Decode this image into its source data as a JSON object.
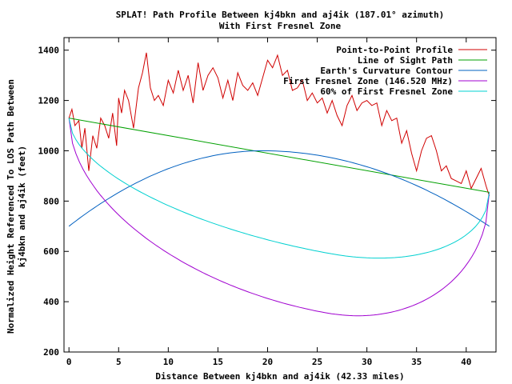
{
  "chart_data": {
    "type": "line",
    "title": "SPLAT! Path Profile Between kj4bkn and aj4ik (187.01° azimuth)",
    "subtitle": "With First Fresnel Zone",
    "xlabel": "Distance Between kj4bkn and aj4ik (42.33 miles)",
    "ylabel": "Normalized Height Referenced To LOS Path Between kj4bkn and aj4ik (feet)",
    "xlim": [
      -0.5,
      43
    ],
    "ylim": [
      200,
      1450
    ],
    "xticks": [
      0,
      5,
      10,
      15,
      20,
      25,
      30,
      35,
      40
    ],
    "yticks": [
      200,
      400,
      600,
      800,
      1000,
      1200,
      1400
    ],
    "grid": false,
    "legend_position": "top-right",
    "series": [
      {
        "name": "Point-to-Point Profile",
        "color": "#d00000",
        "x": [
          0,
          0.3,
          0.6,
          1.0,
          1.3,
          1.6,
          2.0,
          2.4,
          2.8,
          3.2,
          3.6,
          4.0,
          4.4,
          4.8,
          5.0,
          5.3,
          5.6,
          6.0,
          6.5,
          7.0,
          7.4,
          7.8,
          8.2,
          8.6,
          9.0,
          9.5,
          10.0,
          10.5,
          11.0,
          11.5,
          12.0,
          12.5,
          13.0,
          13.5,
          14.0,
          14.5,
          15.0,
          15.5,
          16.0,
          16.5,
          17.0,
          17.5,
          18.0,
          18.5,
          19.0,
          19.5,
          20.0,
          20.5,
          21.0,
          21.5,
          22.0,
          22.5,
          23.0,
          23.5,
          24.0,
          24.5,
          25.0,
          25.5,
          26.0,
          26.5,
          27.0,
          27.5,
          28.0,
          28.5,
          29.0,
          29.5,
          30.0,
          30.5,
          31.0,
          31.5,
          32.0,
          32.5,
          33.0,
          33.5,
          34.0,
          34.5,
          35.0,
          35.5,
          36.0,
          36.5,
          37.0,
          37.5,
          38.0,
          38.5,
          39.0,
          39.5,
          40.0,
          40.5,
          41.0,
          41.5,
          42.0,
          42.33
        ],
        "values": [
          1130,
          1165,
          1100,
          1120,
          1010,
          1090,
          920,
          1060,
          1010,
          1130,
          1100,
          1050,
          1150,
          1020,
          1210,
          1150,
          1240,
          1200,
          1090,
          1250,
          1310,
          1390,
          1250,
          1200,
          1220,
          1180,
          1280,
          1230,
          1320,
          1240,
          1300,
          1190,
          1350,
          1240,
          1300,
          1330,
          1290,
          1210,
          1280,
          1200,
          1310,
          1260,
          1240,
          1270,
          1220,
          1290,
          1360,
          1330,
          1380,
          1300,
          1320,
          1240,
          1250,
          1280,
          1200,
          1230,
          1190,
          1210,
          1150,
          1200,
          1140,
          1100,
          1180,
          1220,
          1160,
          1190,
          1200,
          1180,
          1190,
          1100,
          1160,
          1120,
          1130,
          1030,
          1080,
          990,
          920,
          1000,
          1050,
          1060,
          1000,
          920,
          940,
          890,
          880,
          870,
          920,
          850,
          890,
          930,
          860,
          820
        ]
      },
      {
        "name": "Line of Sight Path",
        "color": "#00a000",
        "x": [
          0,
          42.33
        ],
        "values": [
          1130,
          835
        ]
      },
      {
        "name": "Earth's Curvature Contour",
        "color": "#0060c0",
        "curve": "parabola",
        "x": [
          0,
          19.5,
          42.33
        ],
        "values": [
          700,
          1000,
          700
        ]
      },
      {
        "name": "First Fresnel Zone (146.520 MHz)",
        "color": "#a000d0",
        "curve": "fresnel",
        "x": [
          0,
          26,
          42.33
        ],
        "values": [
          1130,
          355,
          835
        ]
      },
      {
        "name": "60% of First Fresnel Zone",
        "color": "#00d0d0",
        "curve": "fresnel",
        "x": [
          0,
          26.5,
          42.33
        ],
        "values": [
          1130,
          590,
          835
        ]
      }
    ]
  }
}
